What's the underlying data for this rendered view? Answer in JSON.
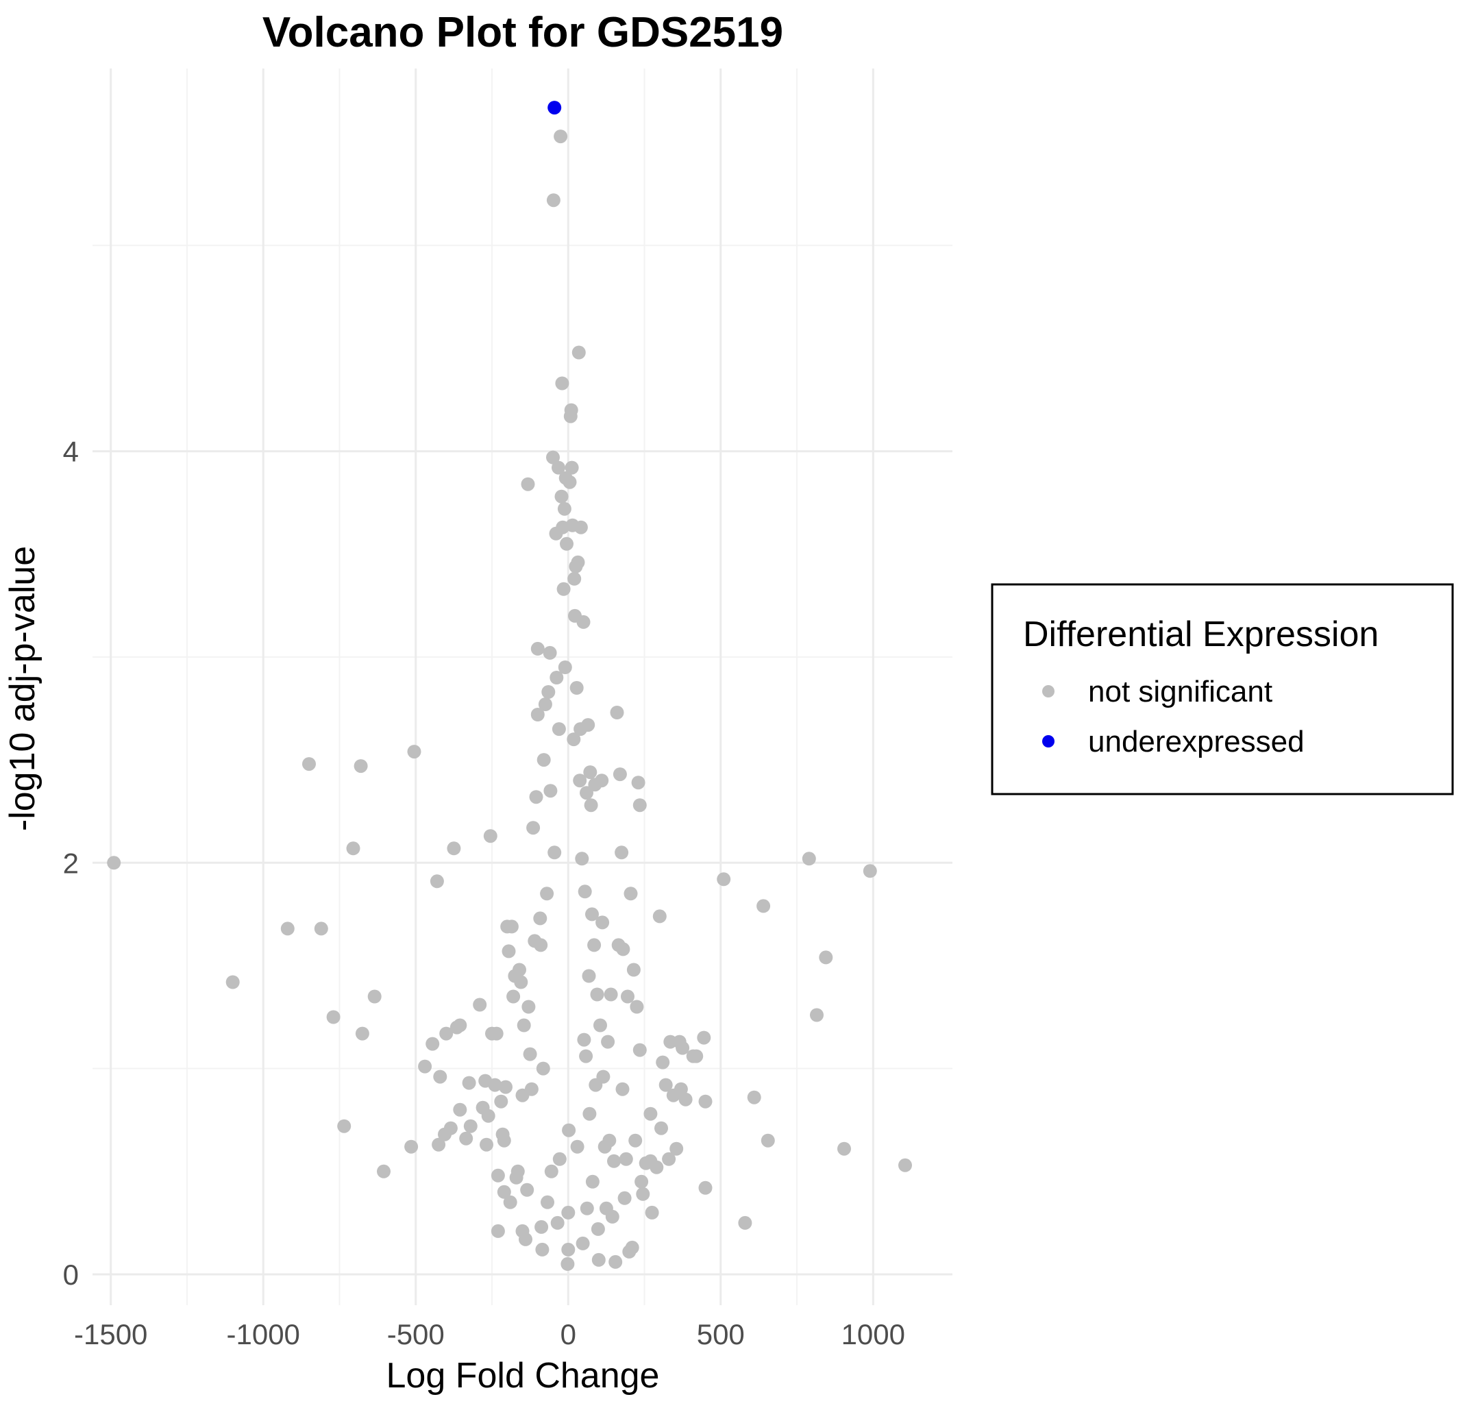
{
  "chart_data": {
    "type": "scatter",
    "title": "Volcano Plot for GDS2519",
    "xlabel": "Log Fold Change",
    "ylabel": "-log10 adj-p-value",
    "xlim": [
      -1560,
      1260
    ],
    "ylim": [
      -0.15,
      5.86
    ],
    "x_ticks": [
      -1500,
      -1000,
      -500,
      0,
      500,
      1000
    ],
    "x_tick_labels": [
      "-1500",
      "-1000",
      "-500",
      "0",
      "500",
      "1000"
    ],
    "y_ticks": [
      0,
      2,
      4
    ],
    "y_tick_labels": [
      "0",
      "2",
      "4"
    ],
    "grid": true,
    "legend": {
      "title": "Differential Expression",
      "placement": "right",
      "entries": [
        {
          "label": "not significant",
          "color": "#bebebe"
        },
        {
          "label": "underexpressed",
          "color": "#0000ee"
        }
      ]
    },
    "series": [
      {
        "name": "not significant",
        "color": "#bebebe",
        "points": [
          [
            -1490,
            2.0
          ],
          [
            -1100,
            1.42
          ],
          [
            -920,
            1.68
          ],
          [
            -850,
            2.48
          ],
          [
            -810,
            1.68
          ],
          [
            -770,
            1.25
          ],
          [
            -735,
            0.72
          ],
          [
            -705,
            2.07
          ],
          [
            -680,
            2.47
          ],
          [
            -675,
            1.17
          ],
          [
            -635,
            1.35
          ],
          [
            -605,
            0.5
          ],
          [
            -515,
            0.62
          ],
          [
            -505,
            2.54
          ],
          [
            -470,
            1.01
          ],
          [
            -445,
            1.12
          ],
          [
            -430,
            1.91
          ],
          [
            -425,
            0.63
          ],
          [
            -420,
            0.96
          ],
          [
            -405,
            0.68
          ],
          [
            -400,
            1.17
          ],
          [
            -385,
            0.71
          ],
          [
            -375,
            2.07
          ],
          [
            -365,
            1.2
          ],
          [
            -355,
            0.8
          ],
          [
            -355,
            1.21
          ],
          [
            -335,
            0.66
          ],
          [
            -325,
            0.93
          ],
          [
            -320,
            0.72
          ],
          [
            -290,
            1.31
          ],
          [
            -280,
            0.81
          ],
          [
            -272,
            0.94
          ],
          [
            -268,
            0.63
          ],
          [
            -262,
            0.77
          ],
          [
            -255,
            2.13
          ],
          [
            -250,
            1.17
          ],
          [
            -240,
            0.92
          ],
          [
            -235,
            1.17
          ],
          [
            -230,
            0.48
          ],
          [
            -230,
            0.21
          ],
          [
            -220,
            0.84
          ],
          [
            -215,
            0.68
          ],
          [
            -210,
            0.65
          ],
          [
            -205,
            0.91
          ],
          [
            -210,
            0.4
          ],
          [
            -200,
            1.69
          ],
          [
            -195,
            1.57
          ],
          [
            -190,
            0.35
          ],
          [
            -185,
            1.69
          ],
          [
            -180,
            1.35
          ],
          [
            -175,
            1.45
          ],
          [
            -170,
            0.47
          ],
          [
            -165,
            0.5
          ],
          [
            -160,
            1.48
          ],
          [
            -155,
            1.42
          ],
          [
            -150,
            0.87
          ],
          [
            -150,
            0.21
          ],
          [
            -145,
            1.21
          ],
          [
            -140,
            0.17
          ],
          [
            -135,
            0.41
          ],
          [
            -132,
            3.84
          ],
          [
            -130,
            1.3
          ],
          [
            -125,
            1.07
          ],
          [
            -120,
            0.9
          ],
          [
            -115,
            2.17
          ],
          [
            -110,
            1.62
          ],
          [
            -105,
            2.32
          ],
          [
            -100,
            2.72
          ],
          [
            -100,
            3.04
          ],
          [
            -92,
            1.73
          ],
          [
            -90,
            1.6
          ],
          [
            -88,
            0.23
          ],
          [
            -85,
            0.12
          ],
          [
            -82,
            1.0
          ],
          [
            -80,
            2.5
          ],
          [
            -75,
            2.77
          ],
          [
            -70,
            1.85
          ],
          [
            -68,
            0.35
          ],
          [
            -65,
            2.83
          ],
          [
            -60,
            3.02
          ],
          [
            -58,
            2.35
          ],
          [
            -55,
            0.5
          ],
          [
            -50,
            3.97
          ],
          [
            -48,
            5.22
          ],
          [
            -45,
            2.05
          ],
          [
            -40,
            3.6
          ],
          [
            -38,
            2.9
          ],
          [
            -35,
            0.25
          ],
          [
            -32,
            3.92
          ],
          [
            -30,
            2.65
          ],
          [
            -28,
            0.56
          ],
          [
            -25,
            5.53
          ],
          [
            -22,
            3.78
          ],
          [
            -20,
            4.33
          ],
          [
            -18,
            3.63
          ],
          [
            -15,
            3.33
          ],
          [
            -12,
            3.72
          ],
          [
            -10,
            2.95
          ],
          [
            -8,
            3.87
          ],
          [
            -5,
            3.55
          ],
          [
            -2,
            0.05
          ],
          [
            0,
            0.12
          ],
          [
            0,
            0.3
          ],
          [
            2,
            0.7
          ],
          [
            5,
            3.85
          ],
          [
            8,
            4.17
          ],
          [
            10,
            4.2
          ],
          [
            12,
            3.92
          ],
          [
            14,
            3.64
          ],
          [
            18,
            2.6
          ],
          [
            20,
            3.38
          ],
          [
            22,
            3.2
          ],
          [
            25,
            3.44
          ],
          [
            28,
            2.85
          ],
          [
            30,
            0.62
          ],
          [
            32,
            3.46
          ],
          [
            35,
            4.48
          ],
          [
            38,
            2.4
          ],
          [
            40,
            2.65
          ],
          [
            42,
            3.63
          ],
          [
            45,
            2.02
          ],
          [
            48,
            0.15
          ],
          [
            50,
            3.17
          ],
          [
            52,
            1.14
          ],
          [
            55,
            1.86
          ],
          [
            58,
            1.06
          ],
          [
            60,
            2.34
          ],
          [
            62,
            0.32
          ],
          [
            65,
            2.67
          ],
          [
            68,
            1.45
          ],
          [
            70,
            0.78
          ],
          [
            72,
            2.44
          ],
          [
            75,
            2.28
          ],
          [
            78,
            1.75
          ],
          [
            80,
            0.45
          ],
          [
            85,
            1.6
          ],
          [
            88,
            2.38
          ],
          [
            90,
            0.92
          ],
          [
            95,
            1.36
          ],
          [
            98,
            0.22
          ],
          [
            100,
            0.07
          ],
          [
            105,
            1.21
          ],
          [
            110,
            2.4
          ],
          [
            112,
            1.71
          ],
          [
            115,
            0.96
          ],
          [
            120,
            0.62
          ],
          [
            125,
            0.32
          ],
          [
            130,
            1.13
          ],
          [
            135,
            0.65
          ],
          [
            140,
            1.36
          ],
          [
            145,
            0.28
          ],
          [
            150,
            0.55
          ],
          [
            155,
            0.06
          ],
          [
            160,
            2.73
          ],
          [
            165,
            1.6
          ],
          [
            170,
            2.43
          ],
          [
            175,
            2.05
          ],
          [
            178,
            0.9
          ],
          [
            180,
            1.58
          ],
          [
            185,
            0.37
          ],
          [
            190,
            0.56
          ],
          [
            195,
            1.35
          ],
          [
            200,
            0.11
          ],
          [
            205,
            1.85
          ],
          [
            210,
            0.13
          ],
          [
            215,
            1.48
          ],
          [
            220,
            0.65
          ],
          [
            225,
            1.3
          ],
          [
            230,
            2.39
          ],
          [
            235,
            1.09
          ],
          [
            235,
            2.28
          ],
          [
            240,
            0.45
          ],
          [
            245,
            0.39
          ],
          [
            255,
            0.54
          ],
          [
            270,
            0.78
          ],
          [
            270,
            0.55
          ],
          [
            275,
            0.3
          ],
          [
            290,
            0.52
          ],
          [
            300,
            1.74
          ],
          [
            305,
            0.71
          ],
          [
            310,
            1.03
          ],
          [
            320,
            0.92
          ],
          [
            330,
            0.56
          ],
          [
            335,
            1.13
          ],
          [
            345,
            0.87
          ],
          [
            355,
            0.61
          ],
          [
            365,
            1.13
          ],
          [
            370,
            0.9
          ],
          [
            375,
            1.1
          ],
          [
            385,
            0.85
          ],
          [
            410,
            1.06
          ],
          [
            420,
            1.06
          ],
          [
            445,
            1.15
          ],
          [
            450,
            0.42
          ],
          [
            450,
            0.84
          ],
          [
            510,
            1.92
          ],
          [
            580,
            0.25
          ],
          [
            610,
            0.86
          ],
          [
            640,
            1.79
          ],
          [
            655,
            0.65
          ],
          [
            790,
            2.02
          ],
          [
            815,
            1.26
          ],
          [
            845,
            1.54
          ],
          [
            905,
            0.61
          ],
          [
            990,
            1.96
          ],
          [
            1105,
            0.53
          ]
        ]
      },
      {
        "name": "underexpressed",
        "color": "#0000ee",
        "points": [
          [
            -45,
            5.67
          ]
        ]
      }
    ]
  }
}
